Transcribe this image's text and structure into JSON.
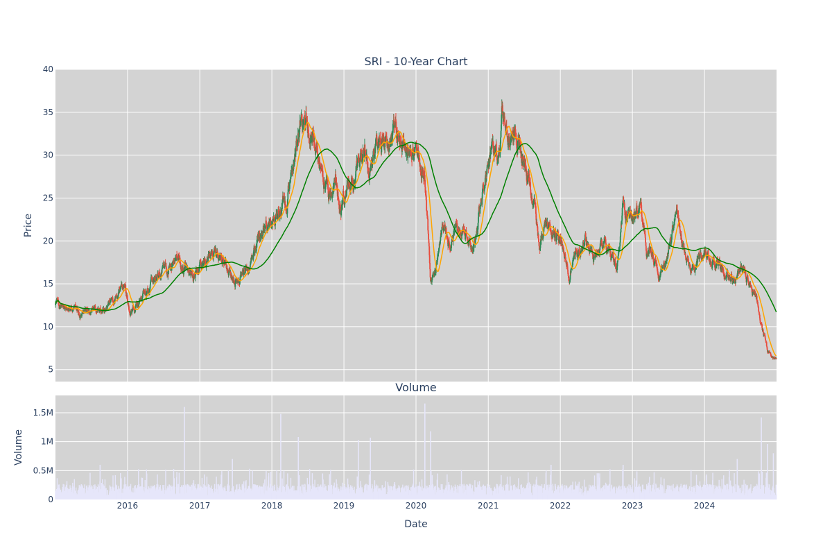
{
  "chart_data": [
    {
      "type": "candlestick",
      "title": "SRI - 10-Year Chart",
      "xlabel": "",
      "ylabel": "Price",
      "ylim": [
        3.6,
        40
      ],
      "yticks": [
        5,
        10,
        15,
        20,
        25,
        30,
        35,
        40
      ],
      "xlim": [
        "2015-01-01",
        "2024-12-31"
      ],
      "xticks": [
        "2016",
        "2017",
        "2018",
        "2019",
        "2020",
        "2021",
        "2022",
        "2023",
        "2024"
      ],
      "grid": true,
      "legend": "none",
      "colors": {
        "up": "#2e8b57",
        "down": "#e84c3d",
        "ma_short": "#ffa500",
        "ma_long": "#008000",
        "background": "#d3d3d3"
      },
      "price_path": [
        {
          "x": "2015-01",
          "y": 12.5
        },
        {
          "x": "2015-03",
          "y": 11.7
        },
        {
          "x": "2015-05",
          "y": 11.6
        },
        {
          "x": "2015-07",
          "y": 12.2
        },
        {
          "x": "2015-09",
          "y": 11.9
        },
        {
          "x": "2015-11",
          "y": 13.8
        },
        {
          "x": "2015-12",
          "y": 15.0
        },
        {
          "x": "2016-01",
          "y": 11.2
        },
        {
          "x": "2016-03",
          "y": 13.5
        },
        {
          "x": "2016-05",
          "y": 15.5
        },
        {
          "x": "2016-07",
          "y": 16.5
        },
        {
          "x": "2016-09",
          "y": 18.0
        },
        {
          "x": "2016-11",
          "y": 16.0
        },
        {
          "x": "2017-01",
          "y": 17.5
        },
        {
          "x": "2017-03",
          "y": 18.5
        },
        {
          "x": "2017-05",
          "y": 17.0
        },
        {
          "x": "2017-07",
          "y": 15.2
        },
        {
          "x": "2017-09",
          "y": 17.5
        },
        {
          "x": "2017-11",
          "y": 21.5
        },
        {
          "x": "2018-01",
          "y": 23.0
        },
        {
          "x": "2018-03",
          "y": 24.5
        },
        {
          "x": "2018-04",
          "y": 28.5
        },
        {
          "x": "2018-05",
          "y": 31.0
        },
        {
          "x": "2018-06",
          "y": 34.5
        },
        {
          "x": "2018-08",
          "y": 31.5
        },
        {
          "x": "2018-09",
          "y": 28.0
        },
        {
          "x": "2018-10",
          "y": 25.0
        },
        {
          "x": "2018-11",
          "y": 26.5
        },
        {
          "x": "2018-12",
          "y": 24.0
        },
        {
          "x": "2019-02",
          "y": 27.0
        },
        {
          "x": "2019-03",
          "y": 29.0
        },
        {
          "x": "2019-04",
          "y": 31.0
        },
        {
          "x": "2019-05",
          "y": 27.5
        },
        {
          "x": "2019-06",
          "y": 30.5
        },
        {
          "x": "2019-07",
          "y": 32.5
        },
        {
          "x": "2019-08",
          "y": 30.5
        },
        {
          "x": "2019-09",
          "y": 32.5
        },
        {
          "x": "2019-10",
          "y": 31.0
        },
        {
          "x": "2019-12",
          "y": 30.5
        },
        {
          "x": "2020-01",
          "y": 29.5
        },
        {
          "x": "2020-02",
          "y": 28.0
        },
        {
          "x": "2020-03",
          "y": 15.0
        },
        {
          "x": "2020-04",
          "y": 17.0
        },
        {
          "x": "2020-05",
          "y": 20.5
        },
        {
          "x": "2020-06",
          "y": 19.5
        },
        {
          "x": "2020-07",
          "y": 21.0
        },
        {
          "x": "2020-09",
          "y": 20.5
        },
        {
          "x": "2020-10",
          "y": 19.0
        },
        {
          "x": "2020-11",
          "y": 23.5
        },
        {
          "x": "2020-12",
          "y": 27.5
        },
        {
          "x": "2021-01",
          "y": 30.0
        },
        {
          "x": "2021-02",
          "y": 29.5
        },
        {
          "x": "2021-03",
          "y": 35.5
        },
        {
          "x": "2021-04",
          "y": 32.0
        },
        {
          "x": "2021-06",
          "y": 31.5
        },
        {
          "x": "2021-07",
          "y": 27.5
        },
        {
          "x": "2021-08",
          "y": 24.5
        },
        {
          "x": "2021-09",
          "y": 20.5
        },
        {
          "x": "2021-10",
          "y": 21.5
        },
        {
          "x": "2021-11",
          "y": 22.0
        },
        {
          "x": "2021-12",
          "y": 20.5
        },
        {
          "x": "2022-01",
          "y": 19.5
        },
        {
          "x": "2022-02",
          "y": 16.0
        },
        {
          "x": "2022-03",
          "y": 18.5
        },
        {
          "x": "2022-04",
          "y": 19.0
        },
        {
          "x": "2022-05",
          "y": 20.0
        },
        {
          "x": "2022-06",
          "y": 17.5
        },
        {
          "x": "2022-07",
          "y": 18.5
        },
        {
          "x": "2022-08",
          "y": 20.5
        },
        {
          "x": "2022-09",
          "y": 18.0
        },
        {
          "x": "2022-10",
          "y": 17.0
        },
        {
          "x": "2022-11",
          "y": 24.5
        },
        {
          "x": "2022-12",
          "y": 22.0
        },
        {
          "x": "2023-01",
          "y": 23.5
        },
        {
          "x": "2023-02",
          "y": 24.0
        },
        {
          "x": "2023-03",
          "y": 18.5
        },
        {
          "x": "2023-04",
          "y": 19.0
        },
        {
          "x": "2023-05",
          "y": 16.5
        },
        {
          "x": "2023-06",
          "y": 17.5
        },
        {
          "x": "2023-07",
          "y": 20.0
        },
        {
          "x": "2023-08",
          "y": 23.5
        },
        {
          "x": "2023-09",
          "y": 19.5
        },
        {
          "x": "2023-10",
          "y": 17.0
        },
        {
          "x": "2023-11",
          "y": 16.5
        },
        {
          "x": "2023-12",
          "y": 18.0
        },
        {
          "x": "2024-01",
          "y": 18.5
        },
        {
          "x": "2024-02",
          "y": 17.5
        },
        {
          "x": "2024-03",
          "y": 18.0
        },
        {
          "x": "2024-04",
          "y": 16.0
        },
        {
          "x": "2024-05",
          "y": 15.5
        },
        {
          "x": "2024-06",
          "y": 16.0
        },
        {
          "x": "2024-07",
          "y": 17.0
        },
        {
          "x": "2024-08",
          "y": 14.5
        },
        {
          "x": "2024-09",
          "y": 13.5
        },
        {
          "x": "2024-10",
          "y": 10.5
        },
        {
          "x": "2024-11",
          "y": 7.0
        },
        {
          "x": "2024-12",
          "y": 6.2
        }
      ]
    },
    {
      "type": "bar",
      "title": "Volume",
      "xlabel": "Date",
      "ylabel": "Volume",
      "ylim": [
        0,
        1800000
      ],
      "yticks": [
        0,
        500000,
        1000000,
        1500000
      ],
      "yticklabels": [
        "0",
        "0.5M",
        "1M",
        "1.5M"
      ],
      "xlim": [
        "2015-01-01",
        "2024-12-31"
      ],
      "xticks": [
        "2016",
        "2017",
        "2018",
        "2019",
        "2020",
        "2021",
        "2022",
        "2023",
        "2024"
      ],
      "grid": true,
      "colors": {
        "bar": "#e6e6fa",
        "background": "#d3d3d3"
      },
      "volume_profile": [
        {
          "x": "2015-01",
          "y": 80000
        },
        {
          "x": "2015-06",
          "y": 100000
        },
        {
          "x": "2015-08",
          "y": 600000
        },
        {
          "x": "2015-12",
          "y": 120000
        },
        {
          "x": "2016-06",
          "y": 250000
        },
        {
          "x": "2016-10",
          "y": 1600000
        },
        {
          "x": "2017-03",
          "y": 200000
        },
        {
          "x": "2017-06",
          "y": 700000
        },
        {
          "x": "2017-12",
          "y": 400000
        },
        {
          "x": "2018-02",
          "y": 1480000
        },
        {
          "x": "2018-05",
          "y": 1080000
        },
        {
          "x": "2018-09",
          "y": 450000
        },
        {
          "x": "2019-03",
          "y": 1030000
        },
        {
          "x": "2019-05",
          "y": 1070000
        },
        {
          "x": "2019-09",
          "y": 300000
        },
        {
          "x": "2020-02",
          "y": 1660000
        },
        {
          "x": "2020-03",
          "y": 1180000
        },
        {
          "x": "2020-06",
          "y": 300000
        },
        {
          "x": "2021-01",
          "y": 200000
        },
        {
          "x": "2021-06",
          "y": 250000
        },
        {
          "x": "2021-11",
          "y": 600000
        },
        {
          "x": "2022-06",
          "y": 250000
        },
        {
          "x": "2022-11",
          "y": 600000
        },
        {
          "x": "2023-04",
          "y": 250000
        },
        {
          "x": "2023-10",
          "y": 200000
        },
        {
          "x": "2024-04",
          "y": 250000
        },
        {
          "x": "2024-06",
          "y": 700000
        },
        {
          "x": "2024-10",
          "y": 1420000
        },
        {
          "x": "2024-11",
          "y": 960000
        },
        {
          "x": "2024-12",
          "y": 800000
        }
      ]
    }
  ]
}
